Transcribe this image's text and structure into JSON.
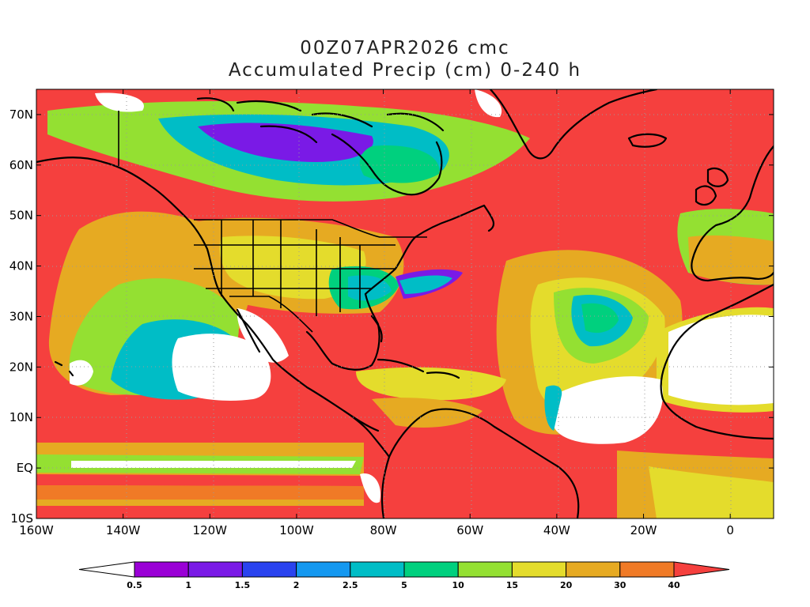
{
  "title": {
    "line1": "00Z07APR2026 cmc",
    "line2": "Accumulated Precip (cm) 0-240 h"
  },
  "map": {
    "lon_range": [
      -160,
      10
    ],
    "lat_range": [
      -10,
      75
    ],
    "x_ticks": [
      {
        "lon": -160,
        "label": "160W"
      },
      {
        "lon": -140,
        "label": "140W"
      },
      {
        "lon": -120,
        "label": "120W"
      },
      {
        "lon": -100,
        "label": "100W"
      },
      {
        "lon": -80,
        "label": "80W"
      },
      {
        "lon": -60,
        "label": "60W"
      },
      {
        "lon": -40,
        "label": "40W"
      },
      {
        "lon": -20,
        "label": "20W"
      },
      {
        "lon": 0,
        "label": "0"
      }
    ],
    "y_ticks": [
      {
        "lat": 70,
        "label": "70N"
      },
      {
        "lat": 60,
        "label": "60N"
      },
      {
        "lat": 50,
        "label": "50N"
      },
      {
        "lat": 40,
        "label": "40N"
      },
      {
        "lat": 30,
        "label": "30N"
      },
      {
        "lat": 20,
        "label": "20N"
      },
      {
        "lat": 10,
        "label": "10N"
      },
      {
        "lat": 0,
        "label": "EQ"
      },
      {
        "lat": -10,
        "label": "10S"
      }
    ],
    "background_color": "#f5403e",
    "gridlines": "dotted"
  },
  "colorbar": {
    "levels": [
      "0.5",
      "1",
      "1.5",
      "2",
      "2.5",
      "5",
      "10",
      "15",
      "20",
      "30",
      "40"
    ],
    "colors": [
      "#ffffff",
      "#9a00d6",
      "#7a1ae6",
      "#2a43ef",
      "#1498f0",
      "#00bdc6",
      "#00d07e",
      "#94e032",
      "#e4dc2c",
      "#e6aa22",
      "#f07a26",
      "#f5403e"
    ]
  }
}
